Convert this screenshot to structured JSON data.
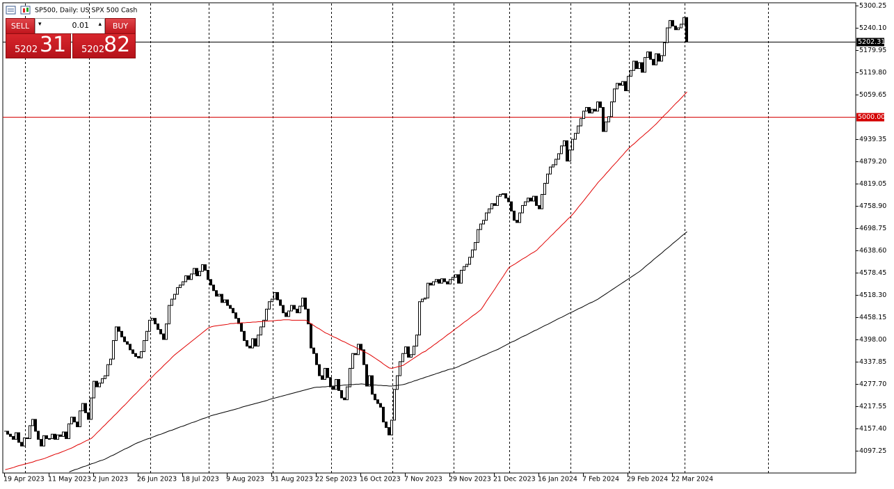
{
  "chart_data": {
    "type": "candlestick",
    "title": "SP500, Daily:  US SPX 500 Cash",
    "categories": [
      "19 Apr 2023",
      null,
      null,
      null,
      null,
      null,
      null,
      null,
      null,
      null,
      null,
      null,
      null,
      null,
      null,
      null,
      "11 May 2023",
      null,
      null,
      null,
      null,
      null,
      null,
      null,
      null,
      null,
      null,
      null,
      null,
      null,
      null,
      null,
      "2 Jun 2023",
      null,
      null,
      null,
      null,
      null,
      null,
      null,
      null,
      null,
      null,
      null,
      null,
      null,
      null,
      null,
      "26 Jun 2023",
      null,
      null,
      null,
      null,
      null,
      null,
      null,
      null,
      null,
      null,
      null,
      null,
      null,
      null,
      null,
      "18 Jul 2023",
      null,
      null,
      null,
      null,
      null,
      null,
      null,
      null,
      null,
      null,
      null,
      null,
      null,
      null,
      null,
      "9 Aug 2023",
      null,
      null,
      null,
      null,
      null,
      null,
      null,
      null,
      null,
      null,
      null,
      null,
      null,
      null,
      null,
      "31 Aug 2023",
      null,
      null,
      null,
      null,
      null,
      null,
      null,
      null,
      null,
      null,
      null,
      null,
      null,
      null,
      null,
      "22 Sep 2023",
      null,
      null,
      null,
      null,
      null,
      null,
      null,
      null,
      null,
      null,
      null,
      null,
      null,
      null,
      null,
      "16 Oct 2023",
      null,
      null,
      null,
      null,
      null,
      null,
      null,
      null,
      null,
      null,
      null,
      null,
      null,
      null,
      null,
      "7 Nov 2023",
      null,
      null,
      null,
      null,
      null,
      null,
      null,
      null,
      null,
      null,
      null,
      null,
      null,
      null,
      null,
      "29 Nov 2023",
      null,
      null,
      null,
      null,
      null,
      null,
      null,
      null,
      null,
      null,
      null,
      null,
      null,
      null,
      null,
      "21 Dec 2023",
      null,
      null,
      null,
      null,
      null,
      null,
      null,
      null,
      null,
      null,
      null,
      null,
      null,
      null,
      null,
      "16 Jan 2024",
      null,
      null,
      null,
      null,
      null,
      null,
      null,
      null,
      null,
      null,
      null,
      null,
      null,
      null,
      null,
      "7 Feb 2024",
      null,
      null,
      null,
      null,
      null,
      null,
      null,
      null,
      null,
      null,
      null,
      null,
      null,
      null,
      null,
      "29 Feb 2024",
      null,
      null,
      null,
      null,
      null,
      null,
      null,
      null,
      null,
      null,
      null,
      null,
      null,
      null,
      null,
      "22 Mar 2024",
      null,
      null,
      null,
      null,
      null
    ],
    "series": [
      {
        "type": "candlestick",
        "color": "#000000",
        "values": [
          4150,
          4142,
          4136,
          4128,
          4146,
          4120,
          4110,
          4132,
          4130,
          4165,
          4182,
          4150,
          4128,
          4110,
          4138,
          4130,
          4130,
          4142,
          4128,
          4140,
          4136,
          4148,
          4130,
          4170,
          4188,
          4175,
          4162,
          4205,
          4225,
          4200,
          4182,
          4240,
          4285,
          4270,
          4280,
          4292,
          4300,
          4330,
          4345,
          4395,
          4432,
          4420,
          4405,
          4392,
          4385,
          4370,
          4360,
          4352,
          4348,
          4365,
          4395,
          4420,
          4450,
          4455,
          4440,
          4425,
          4413,
          4398,
          4440,
          4490,
          4507,
          4520,
          4538,
          4545,
          4554,
          4570,
          4560,
          4575,
          4590,
          4570,
          4582,
          4600,
          4585,
          4560,
          4545,
          4530,
          4515,
          4520,
          4498,
          4505,
          4490,
          4482,
          4470,
          4455,
          4441,
          4420,
          4395,
          4380,
          4375,
          4400,
          4380,
          4410,
          4432,
          4450,
          4480,
          4500,
          4507,
          4525,
          4505,
          4490,
          4470,
          4460,
          4475,
          4490,
          4480,
          4470,
          4488,
          4510,
          4480,
          4440,
          4375,
          4360,
          4330,
          4300,
          4290,
          4320,
          4295,
          4270,
          4263,
          4290,
          4260,
          4240,
          4235,
          4270,
          4320,
          4360,
          4357,
          4385,
          4370,
          4330,
          4272,
          4300,
          4250,
          4235,
          4225,
          4215,
          4175,
          4160,
          4140,
          4180,
          4263,
          4300,
          4338,
          4360,
          4378,
          4350,
          4357,
          4380,
          4410,
          4500,
          4507,
          4510,
          4550,
          4545,
          4554,
          4560,
          4550,
          4562,
          4554,
          4548,
          4560,
          4566,
          4573,
          4550,
          4585,
          4595,
          4601,
          4620,
          4640,
          4660,
          4695,
          4710,
          4720,
          4740,
          4751,
          4765,
          4760,
          4785,
          4790,
          4792,
          4780,
          4770,
          4745,
          4720,
          4714,
          4740,
          4760,
          4770,
          4780,
          4772,
          4785,
          4760,
          4751,
          4790,
          4820,
          4845,
          4864,
          4870,
          4885,
          4900,
          4921,
          4935,
          4880,
          4910,
          4939,
          4955,
          4975,
          4995,
          5015,
          5025,
          5010,
          5020,
          5015,
          5040,
          5025,
          4960,
          4986,
          5000,
          5040,
          5075,
          5090,
          5085,
          5095,
          5070,
          5109,
          5125,
          5150,
          5130,
          5146,
          5120,
          5160,
          5175,
          5155,
          5140,
          5170,
          5150,
          5165,
          5200,
          5240,
          5260,
          5245,
          5235,
          5240,
          5250,
          5268,
          5202.31
        ]
      },
      {
        "type": "line",
        "color": "#e00000",
        "values": [
          4046,
          4048,
          4050,
          4052,
          4055,
          4057,
          4059,
          4061,
          4063,
          4065,
          4067,
          4070,
          4072,
          4074,
          4076,
          4079,
          4082,
          4085,
          4088,
          4090,
          4093,
          4096,
          4099,
          4102,
          4105,
          4109,
          4113,
          4116,
          4120,
          4124,
          4127,
          4131,
          4138,
          4146,
          4153,
          4161,
          4168,
          4176,
          4183,
          4191,
          4198,
          4206,
          4214,
          4221,
          4229,
          4237,
          4245,
          4252,
          4260,
          4268,
          4275,
          4283,
          4291,
          4298,
          4306,
          4313,
          4320,
          4328,
          4335,
          4342,
          4350,
          4357,
          4363,
          4369,
          4375,
          4381,
          4387,
          4393,
          4399,
          4405,
          4411,
          4417,
          4423,
          4429,
          4432,
          4434,
          4435,
          4436,
          4437,
          4438,
          4439,
          4441,
          4441,
          4442,
          4442,
          4443,
          4443,
          4444,
          4444,
          4445,
          4445,
          4446,
          4446,
          4447,
          4447,
          4448,
          4448,
          4449,
          4450,
          4450,
          4451,
          4451,
          4451,
          4450,
          4450,
          4450,
          4450,
          4450,
          4450,
          4445,
          4440,
          4435,
          4430,
          4426,
          4421,
          4416,
          4413,
          4409,
          4405,
          4402,
          4398,
          4394,
          4391,
          4387,
          4383,
          4380,
          4376,
          4372,
          4368,
          4365,
          4361,
          4357,
          4352,
          4347,
          4342,
          4337,
          4331,
          4326,
          4321,
          4320,
          4322,
          4324,
          4326,
          4328,
          4333,
          4338,
          4343,
          4348,
          4353,
          4358,
          4363,
          4366,
          4372,
          4377,
          4383,
          4388,
          4394,
          4399,
          4405,
          4411,
          4416,
          4422,
          4428,
          4433,
          4439,
          4445,
          4450,
          4456,
          4462,
          4467,
          4473,
          4479,
          4490,
          4502,
          4513,
          4524,
          4535,
          4547,
          4558,
          4569,
          4581,
          4592,
          4597,
          4601,
          4606,
          4611,
          4616,
          4620,
          4625,
          4630,
          4634,
          4639,
          4647,
          4654,
          4662,
          4669,
          4677,
          4684,
          4692,
          4699,
          4707,
          4714,
          4722,
          4729,
          4737,
          4746,
          4756,
          4765,
          4774,
          4784,
          4793,
          4803,
          4812,
          4822,
          4830,
          4838,
          4847,
          4855,
          4864,
          4872,
          4880,
          4889,
          4897,
          4906,
          4914,
          4921,
          4927,
          4934,
          4941,
          4947,
          4954,
          4960,
          4967,
          4974,
          4981,
          4989,
          4997,
          5005,
          5012,
          5020,
          5028,
          5036,
          5043,
          5051,
          5059,
          5067
        ]
      },
      {
        "type": "line",
        "color": "#000000",
        "values": [
          null,
          null,
          null,
          null,
          null,
          null,
          null,
          null,
          null,
          null,
          null,
          null,
          null,
          null,
          null,
          null,
          null,
          null,
          null,
          null,
          null,
          null,
          null,
          4040,
          4043,
          4046,
          4048,
          4051,
          4054,
          4056,
          4059,
          4062,
          4064,
          4067,
          4070,
          4072,
          4075,
          4079,
          4083,
          4086,
          4090,
          4094,
          4098,
          4102,
          4105,
          4109,
          4113,
          4117,
          4120,
          4123,
          4126,
          4129,
          4131,
          4134,
          4137,
          4140,
          4142,
          4145,
          4148,
          4151,
          4153,
          4156,
          4159,
          4162,
          4164,
          4167,
          4170,
          4173,
          4175,
          4178,
          4181,
          4184,
          4186,
          4189,
          4192,
          4194,
          4196,
          4198,
          4200,
          4202,
          4204,
          4206,
          4208,
          4210,
          4212,
          4215,
          4217,
          4219,
          4221,
          4223,
          4225,
          4227,
          4229,
          4231,
          4233,
          4236,
          4238,
          4240,
          4242,
          4244,
          4246,
          4248,
          4250,
          4252,
          4254,
          4256,
          4258,
          4260,
          4262,
          4264,
          4266,
          4268,
          4269,
          4269,
          4270,
          4270,
          4271,
          4272,
          4272,
          4273,
          4273,
          4274,
          4275,
          4275,
          4276,
          4276,
          4277,
          4277,
          4278,
          4277,
          4277,
          4276,
          4275,
          4275,
          4274,
          4274,
          4273,
          4273,
          4272,
          4272,
          4273,
          4274,
          4275,
          4276,
          4278,
          4281,
          4283,
          4286,
          4288,
          4291,
          4293,
          4296,
          4298,
          4301,
          4303,
          4306,
          4308,
          4311,
          4313,
          4316,
          4318,
          4319,
          4322,
          4325,
          4329,
          4332,
          4335,
          4339,
          4342,
          4345,
          4348,
          4352,
          4355,
          4358,
          4362,
          4365,
          4368,
          4371,
          4375,
          4379,
          4383,
          4387,
          4391,
          4394,
          4398,
          4402,
          4406,
          4409,
          4413,
          4417,
          4421,
          4424,
          4428,
          4432,
          4436,
          4439,
          4443,
          4447,
          4451,
          4455,
          4458,
          4462,
          4466,
          4470,
          4473,
          4477,
          4481,
          4484,
          4488,
          4492,
          4496,
          4499,
          4503,
          4507,
          4512,
          4517,
          4522,
          4527,
          4532,
          4537,
          4542,
          4547,
          4552,
          4557,
          4562,
          4567,
          4572,
          4577,
          4582,
          4588,
          4595,
          4601,
          4607,
          4614,
          4620,
          4626,
          4632,
          4639,
          4645,
          4651,
          4658,
          4664,
          4670,
          4677,
          4683,
          4689
        ]
      }
    ],
    "ylim": [
      4037.1,
      5307.77
    ],
    "yticks": [
      5300.25,
      {
        "value": 5240.1,
        "label": "5240.10"
      },
      5179.95,
      {
        "value": 5119.8,
        "label": "5119.80"
      },
      5059.65,
      4939.35,
      {
        "value": 4879.2,
        "label": "4879.20"
      },
      4819.05,
      {
        "value": 4758.9,
        "label": "4758.90"
      },
      4698.75,
      {
        "value": 4638.6,
        "label": "4638.60"
      },
      4578.45,
      {
        "value": 4518.3,
        "label": "4518.30"
      },
      4458.15,
      {
        "value": 4398,
        "label": "4398.00"
      },
      4337.85,
      {
        "value": 4277.7,
        "label": "4277.70"
      },
      4217.55,
      {
        "value": 4157.4,
        "label": "4157.40"
      },
      4097.25
    ],
    "price_line": {
      "value": 5202.31,
      "label": "5202.31",
      "color": "#000000"
    },
    "level_line": {
      "value": 5000,
      "label": "5000.00",
      "color": "#d40000"
    }
  },
  "trade_panel": {
    "sell": "SELL",
    "buy": "BUY",
    "lot": "0.01",
    "sell_price_small": "5202",
    "sell_price_big": "31",
    "buy_price_small": "5202",
    "buy_price_big": "82"
  }
}
